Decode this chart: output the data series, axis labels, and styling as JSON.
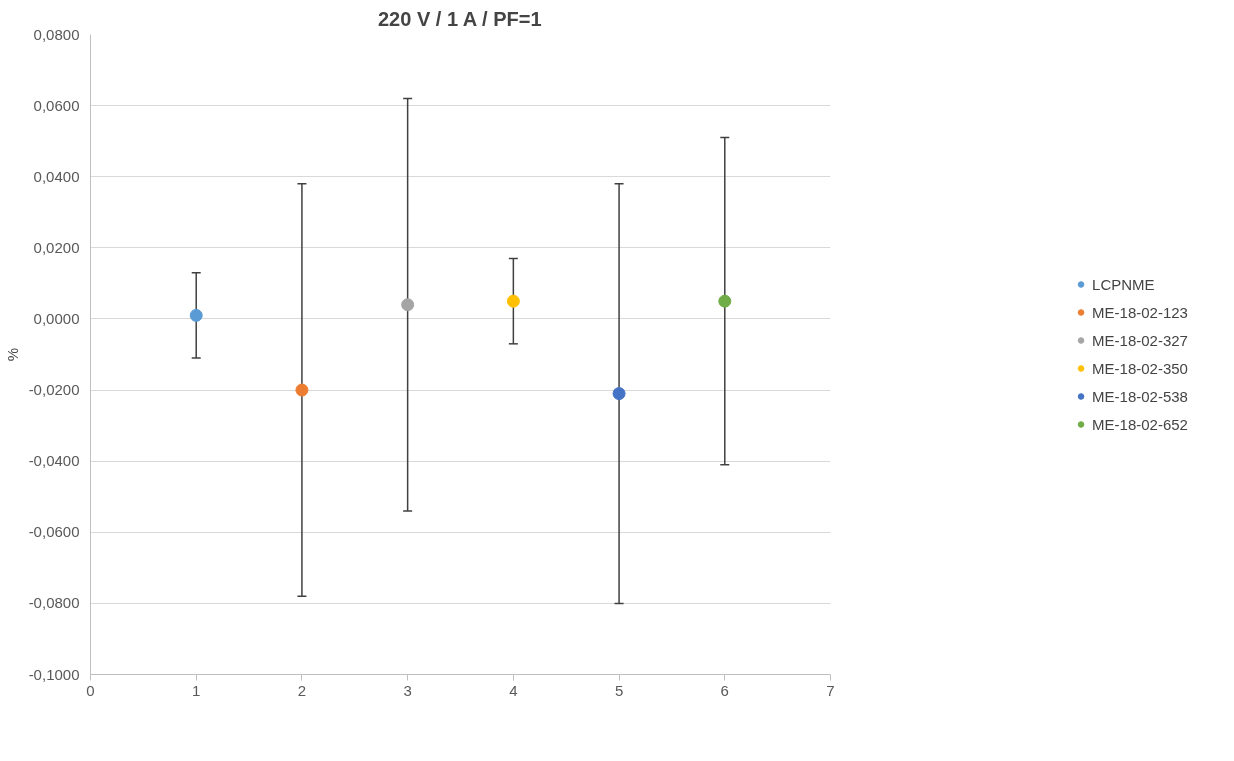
{
  "chart_data": {
    "type": "scatter",
    "title": "220 V / 1 A / PF=1",
    "ylabel": "%",
    "xlim": [
      0,
      7
    ],
    "xticks": [
      0,
      1,
      2,
      3,
      4,
      5,
      6,
      7
    ],
    "ylim": [
      -0.1,
      0.08
    ],
    "yticks": [
      {
        "value": -0.1,
        "label": "-0,1000"
      },
      {
        "value": -0.08,
        "label": "-0,0800"
      },
      {
        "value": -0.06,
        "label": "-0,0600"
      },
      {
        "value": -0.04,
        "label": "-0,0400"
      },
      {
        "value": -0.02,
        "label": "-0,0200"
      },
      {
        "value": 0,
        "label": "0,0000"
      },
      {
        "value": 0.02,
        "label": "0,0200"
      },
      {
        "value": 0.04,
        "label": "0,0400"
      },
      {
        "value": 0.06,
        "label": "0,0600"
      },
      {
        "value": 0.08,
        "label": "0,0800"
      }
    ],
    "grid": "y",
    "legend": "right",
    "marker": "circle",
    "series": [
      {
        "name": "LCPNME",
        "color": "#5b9bd5",
        "x": [
          1
        ],
        "values": [
          0.001
        ],
        "errors": [
          0.012
        ]
      },
      {
        "name": "ME-18-02-123",
        "color": "#ed7d31",
        "x": [
          2
        ],
        "values": [
          -0.02
        ],
        "errors": [
          0.058
        ]
      },
      {
        "name": "ME-18-02-327",
        "color": "#a5a5a5",
        "x": [
          3
        ],
        "values": [
          0.004
        ],
        "errors": [
          0.058
        ]
      },
      {
        "name": "ME-18-02-350",
        "color": "#ffc000",
        "x": [
          4
        ],
        "values": [
          0.005
        ],
        "errors": [
          0.012
        ]
      },
      {
        "name": "ME-18-02-538",
        "color": "#4472c4",
        "x": [
          5
        ],
        "values": [
          -0.021
        ],
        "errors": [
          0.059
        ]
      },
      {
        "name": "ME-18-02-652",
        "color": "#70ad47",
        "x": [
          6
        ],
        "values": [
          0.005
        ],
        "errors": [
          0.046
        ]
      }
    ]
  }
}
